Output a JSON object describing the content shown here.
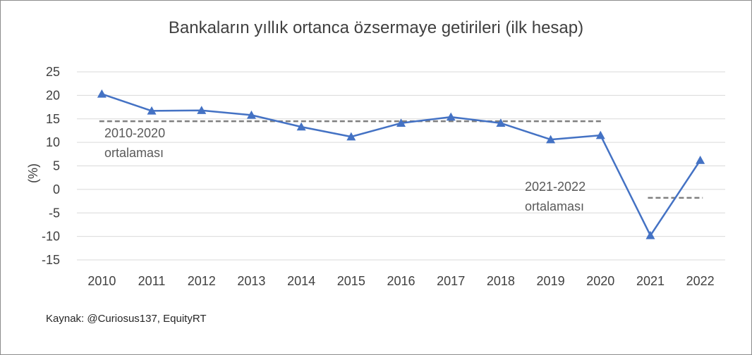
{
  "chart_data": {
    "type": "line",
    "title": "Bankaların yıllık ortanca özsermaye getirileri (ilk hesap)",
    "xlabel": "",
    "ylabel": "(%)",
    "categories": [
      "2010",
      "2011",
      "2012",
      "2013",
      "2014",
      "2015",
      "2016",
      "2017",
      "2018",
      "2019",
      "2020",
      "2021",
      "2022"
    ],
    "series": [
      {
        "values": [
          20.3,
          16.7,
          16.8,
          15.8,
          13.3,
          11.2,
          14.1,
          15.4,
          14.1,
          10.6,
          11.5,
          -9.8,
          6.2
        ]
      }
    ],
    "ylim": [
      -15,
      25
    ],
    "yticks": [
      25,
      20,
      15,
      10,
      5,
      0,
      -5,
      -10,
      -15
    ],
    "grid": true,
    "reference_lines": [
      {
        "label_line1": "2010-2020",
        "label_line2": "ortalaması",
        "value": 14.5,
        "from": "2010",
        "to": "2020"
      },
      {
        "label_line1": "2021-2022",
        "label_line2": "ortalaması",
        "value": -1.8,
        "from": "2021",
        "to": "2022"
      }
    ],
    "source": "Kaynak: @Curiosus137, EquityRT",
    "colors": {
      "line": "#4472c4",
      "grid": "#d9d9d9",
      "reference": "#7f7f7f"
    }
  }
}
